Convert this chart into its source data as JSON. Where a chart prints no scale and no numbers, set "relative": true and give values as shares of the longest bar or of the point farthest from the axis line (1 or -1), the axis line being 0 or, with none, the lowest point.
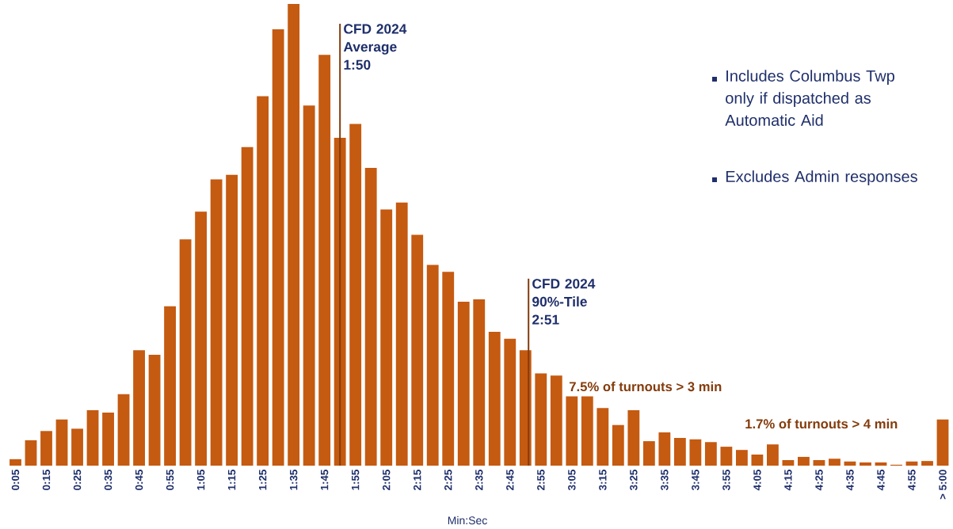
{
  "chart_data": {
    "type": "bar",
    "relative": true,
    "xlabel": "Min:Sec",
    "color": "#c55a11",
    "x": [
      5,
      10,
      15,
      20,
      25,
      30,
      35,
      40,
      45,
      50,
      55,
      60,
      65,
      70,
      75,
      80,
      85,
      90,
      95,
      100,
      105,
      110,
      115,
      120,
      125,
      130,
      135,
      140,
      145,
      150,
      155,
      160,
      165,
      170,
      175,
      180,
      185,
      190,
      195,
      200,
      205,
      210,
      215,
      220,
      225,
      230,
      235,
      240,
      245,
      250,
      255,
      260,
      265,
      270,
      275,
      280,
      285,
      290,
      295,
      300,
      305
    ],
    "xlim": [
      5,
      305
    ],
    "values": [
      0.014,
      0.055,
      0.075,
      0.1,
      0.08,
      0.12,
      0.115,
      0.155,
      0.25,
      0.24,
      0.345,
      0.49,
      0.55,
      0.62,
      0.63,
      0.69,
      0.8,
      0.945,
      1,
      0.78,
      0.89,
      0.71,
      0.74,
      0.645,
      0.555,
      0.57,
      0.5,
      0.435,
      0.42,
      0.355,
      0.36,
      0.29,
      0.275,
      0.25,
      0.2,
      0.195,
      0.15,
      0.15,
      0.125,
      0.088,
      0.12,
      0.053,
      0.072,
      0.06,
      0.057,
      0.051,
      0.041,
      0.034,
      0.024,
      0.046,
      0.012,
      0.019,
      0.012,
      0.015,
      0.009,
      0.007,
      0.007,
      0.002,
      0.009,
      0.01,
      0.1
    ],
    "xticks": [
      {
        "value": 5,
        "label": "0:05"
      },
      {
        "value": 15,
        "label": "0:15"
      },
      {
        "value": 25,
        "label": "0:25"
      },
      {
        "value": 35,
        "label": "0:35"
      },
      {
        "value": 45,
        "label": "0:45"
      },
      {
        "value": 55,
        "label": "0:55"
      },
      {
        "value": 65,
        "label": "1:05"
      },
      {
        "value": 75,
        "label": "1:15"
      },
      {
        "value": 85,
        "label": "1:25"
      },
      {
        "value": 95,
        "label": "1:35"
      },
      {
        "value": 105,
        "label": "1:45"
      },
      {
        "value": 115,
        "label": "1:55"
      },
      {
        "value": 125,
        "label": "2:05"
      },
      {
        "value": 135,
        "label": "2:15"
      },
      {
        "value": 145,
        "label": "2:25"
      },
      {
        "value": 155,
        "label": "2:35"
      },
      {
        "value": 165,
        "label": "2:45"
      },
      {
        "value": 175,
        "label": "2:55"
      },
      {
        "value": 185,
        "label": "3:05"
      },
      {
        "value": 195,
        "label": "3:15"
      },
      {
        "value": 205,
        "label": "3:25"
      },
      {
        "value": 215,
        "label": "3:35"
      },
      {
        "value": 225,
        "label": "3:45"
      },
      {
        "value": 235,
        "label": "3:55"
      },
      {
        "value": 245,
        "label": "4:05"
      },
      {
        "value": 255,
        "label": "4:15"
      },
      {
        "value": 265,
        "label": "4:25"
      },
      {
        "value": 275,
        "label": "4:35"
      },
      {
        "value": 285,
        "label": "4:45"
      },
      {
        "value": 295,
        "label": "4:55"
      },
      {
        "value": 305,
        "label": "> 5:00"
      }
    ],
    "ref_lines": [
      {
        "axis": "x",
        "value": 110,
        "color": "#843c0c"
      },
      {
        "axis": "x",
        "value": 171,
        "color": "#843c0c"
      }
    ],
    "annotations": [
      "CFD 2024 Average 1:50",
      "CFD 2024 90%-Tile 2:51",
      "7.5% of turnouts > 3 min",
      "1.7% of turnouts > 4 min",
      "Includes Columbus Twp only if dispatched as Automatic Aid",
      "Excludes Admin responses"
    ]
  }
}
